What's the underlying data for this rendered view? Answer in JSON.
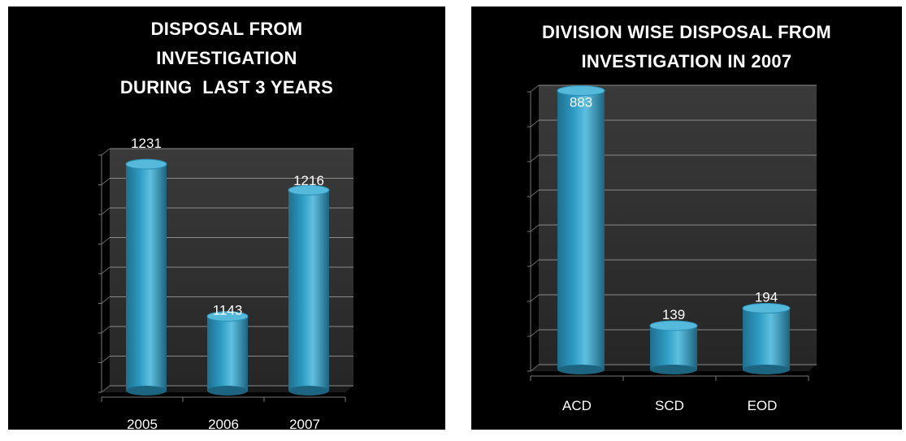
{
  "bar_color": "#2e9cc4",
  "chart_data": [
    {
      "type": "bar",
      "title_lines": [
        "DISPOSAL FROM",
        "INVESTIGATION",
        "DURING  LAST 3 YEARS"
      ],
      "categories": [
        "2005",
        "2006",
        "2007"
      ],
      "values": [
        1231,
        1143,
        1216
      ],
      "data_labels": [
        "1231",
        "1143",
        "1216"
      ],
      "ylim": [
        1100,
        1240
      ],
      "grid": true,
      "xlabel": "",
      "ylabel": ""
    },
    {
      "type": "bar",
      "title_lines": [
        "DIVISION WISE DISPOSAL FROM",
        "INVESTIGATION IN 2007"
      ],
      "categories": [
        "ACD",
        "SCD",
        "EOD"
      ],
      "values": [
        883,
        139,
        194
      ],
      "data_labels": [
        "883",
        "139",
        "194"
      ],
      "ylim": [
        0,
        900
      ],
      "grid": true,
      "xlabel": "",
      "ylabel": ""
    }
  ]
}
